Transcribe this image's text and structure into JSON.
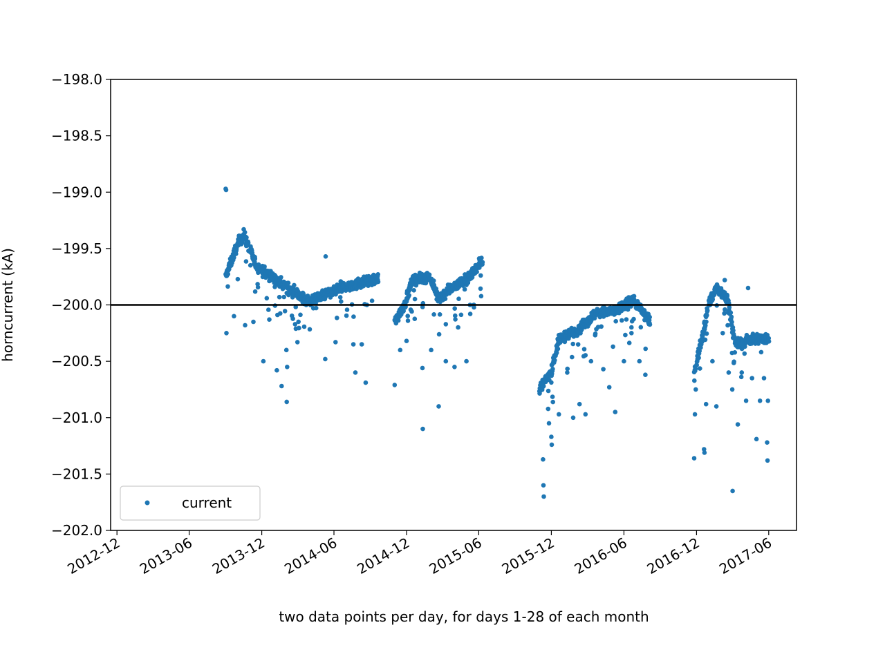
{
  "chart_data": {
    "type": "scatter",
    "xlabel": "two data points per day, for days 1-28 of each month",
    "ylabel": "horncurrent (kA)",
    "ylim": [
      -202.0,
      -198.0
    ],
    "xlim": [
      "2012-11-15",
      "2017-08-10"
    ],
    "reference_line": -200.0,
    "grid": false,
    "legend_position": "lower-left",
    "x_ticks": [
      "2012-12",
      "2013-06",
      "2013-12",
      "2014-06",
      "2014-12",
      "2015-06",
      "2015-12",
      "2016-06",
      "2016-12",
      "2017-06"
    ],
    "y_ticks": [
      "−198.0",
      "−198.5",
      "−199.0",
      "−199.5",
      "−200.0",
      "−200.5",
      "−201.0",
      "−201.5",
      "−202.0"
    ],
    "colors": {
      "series": "#1f77b4",
      "reference_line": "#000000"
    },
    "series": [
      {
        "name": "current",
        "segments": [
          {
            "start": "2013-09-01",
            "end": "2014-09-20",
            "trend": [
              [
                0,
                -199.75
              ],
              [
                0.08,
                -199.45
              ],
              [
                0.12,
                -199.38
              ],
              [
                0.2,
                -199.65
              ],
              [
                0.35,
                -199.8
              ],
              [
                0.55,
                -199.97
              ],
              [
                0.75,
                -199.85
              ],
              [
                1.0,
                -199.77
              ]
            ]
          },
          {
            "start": "2014-11-01",
            "end": "2015-06-10",
            "trend": [
              [
                0,
                -200.15
              ],
              [
                0.12,
                -199.98
              ],
              [
                0.2,
                -199.78
              ],
              [
                0.4,
                -199.75
              ],
              [
                0.5,
                -199.95
              ],
              [
                0.65,
                -199.85
              ],
              [
                0.85,
                -199.75
              ],
              [
                1.0,
                -199.6
              ]
            ]
          },
          {
            "start": "2015-11-01",
            "end": "2016-08-05",
            "trend": [
              [
                0,
                -200.75
              ],
              [
                0.1,
                -200.6
              ],
              [
                0.18,
                -200.3
              ],
              [
                0.35,
                -200.22
              ],
              [
                0.5,
                -200.08
              ],
              [
                0.7,
                -200.05
              ],
              [
                0.85,
                -199.95
              ],
              [
                1.0,
                -200.15
              ]
            ]
          },
          {
            "start": "2016-11-25",
            "end": "2017-06-01",
            "trend": [
              [
                0,
                -200.6
              ],
              [
                0.1,
                -200.3
              ],
              [
                0.2,
                -199.98
              ],
              [
                0.3,
                -199.85
              ],
              [
                0.45,
                -199.95
              ],
              [
                0.55,
                -200.35
              ],
              [
                0.8,
                -200.3
              ],
              [
                1.0,
                -200.3
              ]
            ]
          }
        ],
        "outliers": [
          [
            "2013-09-01",
            -198.97
          ],
          [
            "2013-09-02",
            -198.98
          ],
          [
            "2013-09-03",
            -200.25
          ],
          [
            "2013-09-22",
            -200.1
          ],
          [
            "2013-10-20",
            -200.18
          ],
          [
            "2013-11-10",
            -200.15
          ],
          [
            "2013-12-05",
            -200.5
          ],
          [
            "2013-12-20",
            -200.13
          ],
          [
            "2014-01-08",
            -200.58
          ],
          [
            "2014-01-20",
            -200.72
          ],
          [
            "2014-02-01",
            -200.4
          ],
          [
            "2014-02-02",
            -200.86
          ],
          [
            "2014-02-03",
            -200.55
          ],
          [
            "2014-03-01",
            -200.33
          ],
          [
            "2014-05-10",
            -200.48
          ],
          [
            "2014-05-11",
            -199.57
          ],
          [
            "2014-06-05",
            -200.33
          ],
          [
            "2014-07-20",
            -200.35
          ],
          [
            "2014-07-25",
            -200.6
          ],
          [
            "2014-08-10",
            -200.35
          ],
          [
            "2014-08-20",
            -200.69
          ],
          [
            "2014-11-01",
            -200.71
          ],
          [
            "2014-11-15",
            -200.4
          ],
          [
            "2014-12-01",
            -200.32
          ],
          [
            "2015-01-10",
            -200.56
          ],
          [
            "2015-01-11",
            -201.1
          ],
          [
            "2015-02-01",
            -200.4
          ],
          [
            "2015-02-20",
            -200.9
          ],
          [
            "2015-03-10",
            -200.5
          ],
          [
            "2015-04-01",
            -200.55
          ],
          [
            "2015-04-10",
            -200.2
          ],
          [
            "2015-05-01",
            -200.5
          ],
          [
            "2015-05-10",
            -200.0
          ],
          [
            "2015-11-10",
            -201.37
          ],
          [
            "2015-11-11",
            -201.6
          ],
          [
            "2015-11-12",
            -201.7
          ],
          [
            "2015-11-25",
            -201.05
          ],
          [
            "2015-12-01",
            -201.17
          ],
          [
            "2015-12-02",
            -201.24
          ],
          [
            "2015-12-20",
            -200.97
          ],
          [
            "2016-01-10",
            -200.6
          ],
          [
            "2016-01-25",
            -201.0
          ],
          [
            "2016-02-10",
            -200.88
          ],
          [
            "2016-02-25",
            -200.97
          ],
          [
            "2016-03-10",
            -200.5
          ],
          [
            "2016-04-10",
            -200.57
          ],
          [
            "2016-04-25",
            -200.73
          ],
          [
            "2016-05-10",
            -200.95
          ],
          [
            "2016-06-01",
            -200.5
          ],
          [
            "2016-06-20",
            -200.25
          ],
          [
            "2016-07-10",
            -200.5
          ],
          [
            "2016-07-25",
            -200.62
          ],
          [
            "2016-11-25",
            -201.36
          ],
          [
            "2016-11-27",
            -200.97
          ],
          [
            "2016-11-29",
            -200.75
          ],
          [
            "2016-12-20",
            -201.28
          ],
          [
            "2016-12-21",
            -201.31
          ],
          [
            "2016-12-25",
            -200.88
          ],
          [
            "2017-01-10",
            -200.5
          ],
          [
            "2017-01-20",
            -200.9
          ],
          [
            "2017-02-05",
            -200.25
          ],
          [
            "2017-02-20",
            -200.6
          ],
          [
            "2017-03-01",
            -200.75
          ],
          [
            "2017-03-02",
            -201.65
          ],
          [
            "2017-03-15",
            -201.06
          ],
          [
            "2017-03-25",
            -200.6
          ],
          [
            "2017-04-05",
            -200.85
          ],
          [
            "2017-04-20",
            -200.65
          ],
          [
            "2017-05-01",
            -201.19
          ],
          [
            "2017-05-10",
            -200.85
          ],
          [
            "2017-05-20",
            -200.65
          ],
          [
            "2017-05-28",
            -201.22
          ],
          [
            "2017-05-29",
            -201.38
          ],
          [
            "2017-05-30",
            -200.85
          ],
          [
            "2017-04-10",
            -199.85
          ],
          [
            "2017-02-10",
            -199.78
          ]
        ]
      }
    ]
  }
}
